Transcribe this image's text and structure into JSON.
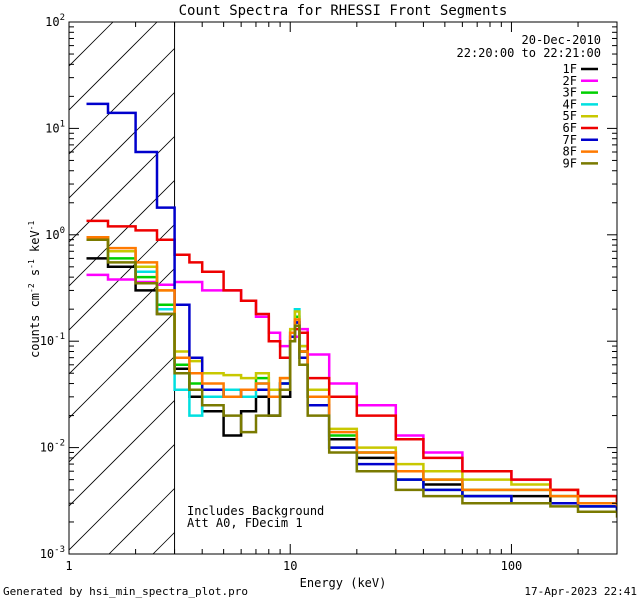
{
  "chart_data": {
    "type": "line",
    "title": "Count Spectra for RHESSI Front Segments",
    "xlabel": "Energy (keV)",
    "ylabel": "counts cm",
    "ylabel_sup1": "-2",
    "ylabel_mid": " s",
    "ylabel_sup2": "-1",
    "ylabel_end": " keV",
    "ylabel_sup3": "-1",
    "xscale": "log",
    "yscale": "log",
    "xlim": [
      1,
      300
    ],
    "ylim": [
      0.001,
      100
    ],
    "x_ticks": [
      {
        "value": 1,
        "label": "1"
      },
      {
        "value": 10,
        "label": "10"
      },
      {
        "value": 100,
        "label": "100"
      }
    ],
    "y_ticks": [
      {
        "value": 0.001,
        "base": "10",
        "exp": "-3"
      },
      {
        "value": 0.01,
        "base": "10",
        "exp": "-2"
      },
      {
        "value": 0.1,
        "base": "10",
        "exp": "-1"
      },
      {
        "value": 1,
        "base": "10",
        "exp": "0"
      },
      {
        "value": 10,
        "base": "10",
        "exp": "1"
      },
      {
        "value": 100,
        "base": "10",
        "exp": "2"
      }
    ],
    "excluded_region": {
      "from": 1,
      "to": 3,
      "style": "hatched"
    },
    "date": "20-Dec-2010",
    "time_range": "22:20:00 to 22:21:00",
    "annotation_lines": [
      "Includes Background",
      "Att A0, FDecim 1"
    ],
    "series": [
      {
        "name": "1F",
        "color": "#000000",
        "values": [
          [
            1.2,
            0.6
          ],
          [
            1.5,
            0.5
          ],
          [
            2,
            0.3
          ],
          [
            2.5,
            0.18
          ],
          [
            3,
            0.055
          ],
          [
            3.5,
            0.03
          ],
          [
            4,
            0.022
          ],
          [
            5,
            0.013
          ],
          [
            6,
            0.022
          ],
          [
            7,
            0.03
          ],
          [
            8,
            0.02
          ],
          [
            9,
            0.03
          ],
          [
            10,
            0.1
          ],
          [
            10.5,
            0.15
          ],
          [
            11,
            0.08
          ],
          [
            12,
            0.03
          ],
          [
            15,
            0.012
          ],
          [
            20,
            0.008
          ],
          [
            30,
            0.005
          ],
          [
            40,
            0.0045
          ],
          [
            60,
            0.0035
          ],
          [
            100,
            0.0035
          ],
          [
            150,
            0.003
          ],
          [
            200,
            0.0028
          ],
          [
            300,
            0.0025
          ]
        ]
      },
      {
        "name": "2F",
        "color": "#ff00ff",
        "values": [
          [
            1.2,
            0.42
          ],
          [
            1.5,
            0.38
          ],
          [
            2,
            0.36
          ],
          [
            2.5,
            0.34
          ],
          [
            3,
            0.36
          ],
          [
            4,
            0.3
          ],
          [
            5,
            0.3
          ],
          [
            6,
            0.24
          ],
          [
            7,
            0.17
          ],
          [
            8,
            0.12
          ],
          [
            9,
            0.09
          ],
          [
            10,
            0.11
          ],
          [
            11,
            0.13
          ],
          [
            12,
            0.075
          ],
          [
            15,
            0.04
          ],
          [
            20,
            0.025
          ],
          [
            30,
            0.013
          ],
          [
            40,
            0.009
          ],
          [
            60,
            0.006
          ],
          [
            100,
            0.005
          ],
          [
            150,
            0.004
          ],
          [
            200,
            0.0035
          ],
          [
            300,
            0.003
          ]
        ]
      },
      {
        "name": "3F",
        "color": "#00d000",
        "values": [
          [
            1.2,
            0.95
          ],
          [
            1.5,
            0.6
          ],
          [
            2,
            0.4
          ],
          [
            2.5,
            0.22
          ],
          [
            3,
            0.06
          ],
          [
            3.5,
            0.04
          ],
          [
            4,
            0.035
          ],
          [
            5,
            0.03
          ],
          [
            6,
            0.035
          ],
          [
            7,
            0.045
          ],
          [
            8,
            0.03
          ],
          [
            9,
            0.04
          ],
          [
            10,
            0.12
          ],
          [
            10.5,
            0.17
          ],
          [
            11,
            0.08
          ],
          [
            12,
            0.03
          ],
          [
            15,
            0.013
          ],
          [
            20,
            0.009
          ],
          [
            30,
            0.006
          ],
          [
            40,
            0.005
          ],
          [
            60,
            0.004
          ],
          [
            100,
            0.004
          ],
          [
            150,
            0.0035
          ],
          [
            200,
            0.003
          ],
          [
            300,
            0.0028
          ]
        ]
      },
      {
        "name": "4F",
        "color": "#00e0e0",
        "values": [
          [
            1.2,
            0.9
          ],
          [
            1.5,
            0.7
          ],
          [
            2,
            0.45
          ],
          [
            2.5,
            0.2
          ],
          [
            3,
            0.035
          ],
          [
            3.5,
            0.02
          ],
          [
            4,
            0.03
          ],
          [
            5,
            0.035
          ],
          [
            6,
            0.03
          ],
          [
            7,
            0.04
          ],
          [
            8,
            0.03
          ],
          [
            9,
            0.04
          ],
          [
            10,
            0.12
          ],
          [
            10.5,
            0.2
          ],
          [
            11,
            0.09
          ],
          [
            12,
            0.03
          ],
          [
            15,
            0.01
          ],
          [
            20,
            0.006
          ],
          [
            30,
            0.005
          ],
          [
            40,
            0.004
          ],
          [
            60,
            0.0035
          ],
          [
            100,
            0.003
          ],
          [
            150,
            0.003
          ],
          [
            200,
            0.0028
          ],
          [
            300,
            0.0025
          ]
        ]
      },
      {
        "name": "5F",
        "color": "#c8c800",
        "values": [
          [
            1.2,
            0.95
          ],
          [
            1.5,
            0.7
          ],
          [
            2,
            0.5
          ],
          [
            2.5,
            0.3
          ],
          [
            3,
            0.08
          ],
          [
            3.5,
            0.065
          ],
          [
            4,
            0.05
          ],
          [
            5,
            0.048
          ],
          [
            6,
            0.045
          ],
          [
            7,
            0.05
          ],
          [
            8,
            0.035
          ],
          [
            9,
            0.045
          ],
          [
            10,
            0.13
          ],
          [
            10.5,
            0.19
          ],
          [
            11,
            0.09
          ],
          [
            12,
            0.035
          ],
          [
            15,
            0.015
          ],
          [
            20,
            0.01
          ],
          [
            30,
            0.007
          ],
          [
            40,
            0.006
          ],
          [
            60,
            0.005
          ],
          [
            100,
            0.0045
          ],
          [
            150,
            0.004
          ],
          [
            200,
            0.0035
          ],
          [
            300,
            0.003
          ]
        ]
      },
      {
        "name": "6F",
        "color": "#ee0000",
        "values": [
          [
            1.2,
            1.35
          ],
          [
            1.5,
            1.2
          ],
          [
            2,
            1.1
          ],
          [
            2.5,
            0.9
          ],
          [
            3,
            0.65
          ],
          [
            3.5,
            0.55
          ],
          [
            4,
            0.45
          ],
          [
            5,
            0.3
          ],
          [
            6,
            0.24
          ],
          [
            7,
            0.18
          ],
          [
            8,
            0.1
          ],
          [
            9,
            0.07
          ],
          [
            10,
            0.1
          ],
          [
            10.5,
            0.13
          ],
          [
            11,
            0.12
          ],
          [
            12,
            0.045
          ],
          [
            15,
            0.03
          ],
          [
            20,
            0.02
          ],
          [
            30,
            0.012
          ],
          [
            40,
            0.008
          ],
          [
            60,
            0.006
          ],
          [
            100,
            0.005
          ],
          [
            150,
            0.004
          ],
          [
            200,
            0.0035
          ],
          [
            300,
            0.003
          ]
        ]
      },
      {
        "name": "7F",
        "color": "#0000cc",
        "values": [
          [
            1.2,
            17
          ],
          [
            1.5,
            14
          ],
          [
            2,
            6
          ],
          [
            2.5,
            1.8
          ],
          [
            3,
            0.22
          ],
          [
            3.5,
            0.07
          ],
          [
            4,
            0.035
          ],
          [
            5,
            0.03
          ],
          [
            6,
            0.035
          ],
          [
            7,
            0.035
          ],
          [
            8,
            0.03
          ],
          [
            9,
            0.04
          ],
          [
            10,
            0.11
          ],
          [
            10.5,
            0.15
          ],
          [
            11,
            0.07
          ],
          [
            12,
            0.025
          ],
          [
            15,
            0.01
          ],
          [
            20,
            0.007
          ],
          [
            30,
            0.005
          ],
          [
            40,
            0.004
          ],
          [
            60,
            0.0035
          ],
          [
            100,
            0.003
          ],
          [
            150,
            0.003
          ],
          [
            200,
            0.0028
          ],
          [
            300,
            0.0025
          ]
        ]
      },
      {
        "name": "8F",
        "color": "#ff7a00",
        "values": [
          [
            1.2,
            0.95
          ],
          [
            1.5,
            0.75
          ],
          [
            2,
            0.55
          ],
          [
            2.5,
            0.3
          ],
          [
            3,
            0.07
          ],
          [
            3.5,
            0.05
          ],
          [
            4,
            0.04
          ],
          [
            5,
            0.03
          ],
          [
            6,
            0.035
          ],
          [
            7,
            0.04
          ],
          [
            8,
            0.03
          ],
          [
            9,
            0.045
          ],
          [
            10,
            0.12
          ],
          [
            10.5,
            0.16
          ],
          [
            11,
            0.08
          ],
          [
            12,
            0.03
          ],
          [
            15,
            0.014
          ],
          [
            20,
            0.009
          ],
          [
            30,
            0.006
          ],
          [
            40,
            0.005
          ],
          [
            60,
            0.004
          ],
          [
            100,
            0.004
          ],
          [
            150,
            0.0035
          ],
          [
            200,
            0.003
          ],
          [
            300,
            0.0028
          ]
        ]
      },
      {
        "name": "9F",
        "color": "#7a7a00",
        "values": [
          [
            1.2,
            0.9
          ],
          [
            1.5,
            0.55
          ],
          [
            2,
            0.35
          ],
          [
            2.5,
            0.18
          ],
          [
            3,
            0.05
          ],
          [
            3.5,
            0.035
          ],
          [
            4,
            0.025
          ],
          [
            5,
            0.02
          ],
          [
            6,
            0.014
          ],
          [
            7,
            0.02
          ],
          [
            8,
            0.02
          ],
          [
            9,
            0.035
          ],
          [
            10,
            0.1
          ],
          [
            10.5,
            0.14
          ],
          [
            11,
            0.06
          ],
          [
            12,
            0.02
          ],
          [
            15,
            0.009
          ],
          [
            20,
            0.006
          ],
          [
            30,
            0.004
          ],
          [
            40,
            0.0035
          ],
          [
            60,
            0.003
          ],
          [
            100,
            0.003
          ],
          [
            150,
            0.0028
          ],
          [
            200,
            0.0025
          ],
          [
            300,
            0.0022
          ]
        ]
      }
    ]
  },
  "footer": {
    "generated_by": "Generated by hsi_min_spectra_plot.pro",
    "timestamp": "17-Apr-2023 22:41"
  }
}
